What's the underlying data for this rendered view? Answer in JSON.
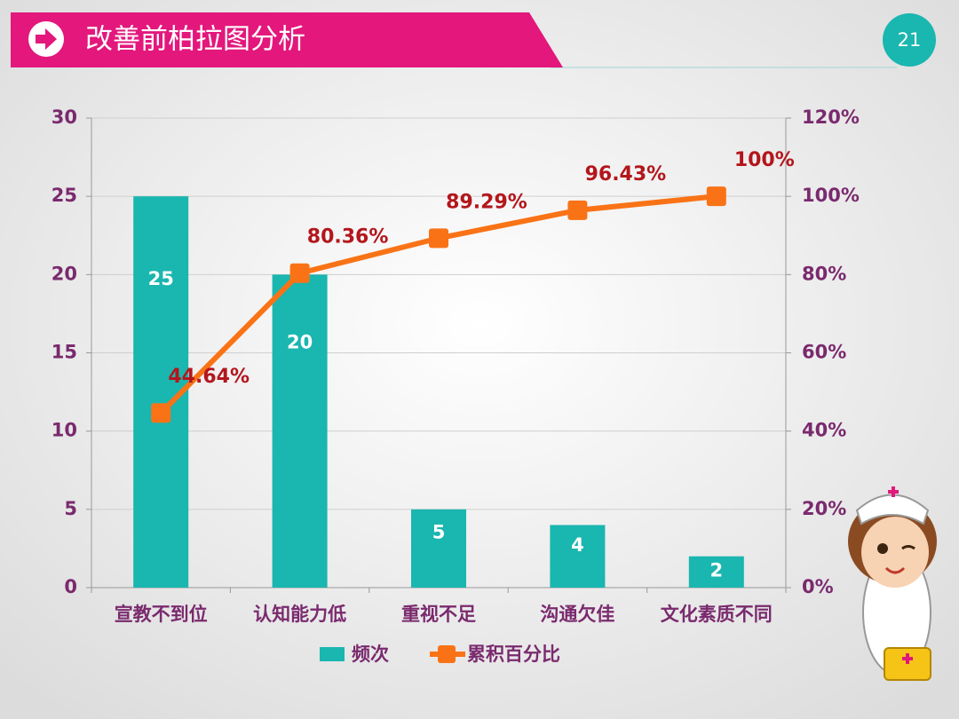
{
  "header": {
    "title": "改善前柏拉图分析",
    "page_number": "21"
  },
  "chart_data": {
    "type": "pareto",
    "categories": [
      "宣教不到位",
      "认知能力低",
      "重视不足",
      "沟通欠佳",
      "文化素质不同"
    ],
    "series": [
      {
        "name": "频次",
        "type": "bar",
        "color": "#1ab6b0",
        "values": [
          25,
          20,
          5,
          4,
          2
        ]
      },
      {
        "name": "累积百分比",
        "type": "line",
        "axis": "y2",
        "color": "#f97316",
        "values": [
          44.64,
          80.36,
          89.29,
          96.43,
          100
        ],
        "value_labels": [
          "44.64%",
          "80.36%",
          "89.29%",
          "96.43%",
          "100%"
        ]
      }
    ],
    "ylim": [
      0,
      30
    ],
    "yticks": [
      0,
      5,
      10,
      15,
      20,
      25,
      30
    ],
    "y2lim": [
      0,
      120
    ],
    "y2ticks": [
      {
        "value": 0,
        "label": "0%"
      },
      {
        "value": 20,
        "label": "20%"
      },
      {
        "value": 40,
        "label": "40%"
      },
      {
        "value": 60,
        "label": "60%"
      },
      {
        "value": 80,
        "label": "80%"
      },
      {
        "value": 100,
        "label": "100%"
      },
      {
        "value": 120,
        "label": "120%"
      }
    ],
    "grid": true,
    "legend": "bottom"
  }
}
